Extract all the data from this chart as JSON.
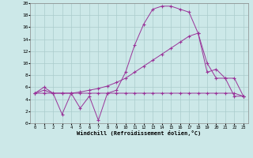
{
  "xlabel": "Windchill (Refroidissement éolien,°C)",
  "bg_color": "#cce8e8",
  "line_color": "#993399",
  "grid_color": "#aacccc",
  "xlim": [
    -0.5,
    23.5
  ],
  "ylim": [
    0,
    20
  ],
  "yticks": [
    0,
    2,
    4,
    6,
    8,
    10,
    12,
    14,
    16,
    18,
    20
  ],
  "xticks": [
    0,
    1,
    2,
    3,
    4,
    5,
    6,
    7,
    8,
    9,
    10,
    11,
    12,
    13,
    14,
    15,
    16,
    17,
    18,
    19,
    20,
    21,
    22,
    23
  ],
  "line1_x": [
    0,
    1,
    2,
    3,
    4,
    5,
    6,
    7,
    8,
    9,
    10,
    11,
    12,
    13,
    14,
    15,
    16,
    17,
    18,
    19,
    20,
    21,
    22,
    23
  ],
  "line1_y": [
    5.0,
    6.0,
    5.0,
    1.5,
    5.0,
    2.5,
    4.5,
    0.5,
    5.0,
    5.0,
    5.0,
    5.0,
    5.0,
    5.0,
    5.0,
    5.0,
    5.0,
    5.0,
    5.0,
    5.0,
    5.0,
    5.0,
    5.0,
    4.5
  ],
  "line2_x": [
    0,
    1,
    2,
    3,
    4,
    5,
    6,
    7,
    8,
    9,
    10,
    11,
    12,
    13,
    14,
    15,
    16,
    17,
    18,
    19,
    20,
    21,
    22,
    23
  ],
  "line2_y": [
    5.0,
    5.5,
    5.0,
    5.0,
    5.0,
    5.0,
    5.0,
    5.0,
    5.0,
    5.5,
    8.5,
    13.0,
    16.5,
    19.0,
    19.5,
    19.5,
    19.0,
    18.5,
    15.0,
    8.5,
    9.0,
    7.5,
    7.5,
    4.5
  ],
  "line3_x": [
    0,
    1,
    2,
    3,
    4,
    5,
    6,
    7,
    8,
    9,
    10,
    11,
    12,
    13,
    14,
    15,
    16,
    17,
    18,
    19,
    20,
    21,
    22,
    23
  ],
  "line3_y": [
    5.0,
    5.0,
    5.0,
    5.0,
    5.0,
    5.2,
    5.5,
    5.8,
    6.2,
    6.8,
    7.5,
    8.5,
    9.5,
    10.5,
    11.5,
    12.5,
    13.5,
    14.5,
    15.0,
    10.0,
    7.5,
    7.5,
    4.5,
    4.5
  ]
}
